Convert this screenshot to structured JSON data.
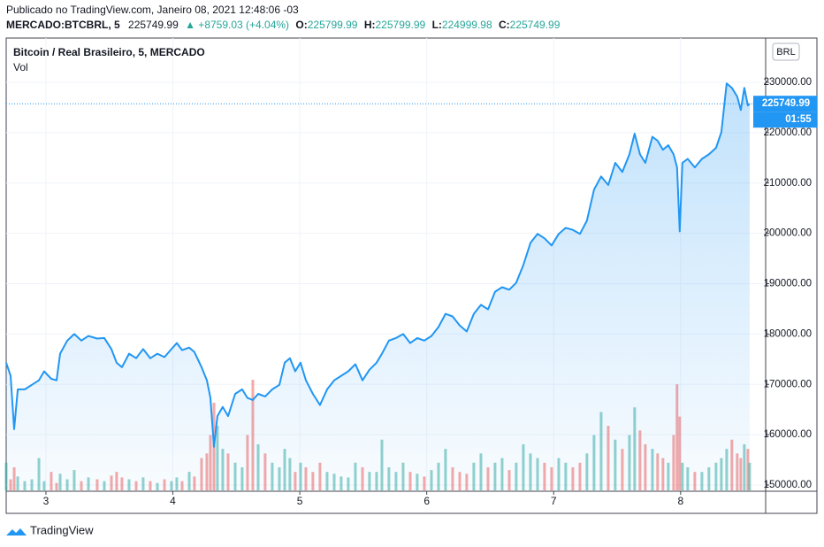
{
  "header": {
    "published": "Publicado no TradingView.com, Janeiro 08, 2021 12:48:06 -03",
    "symbol": "MERCADO:BTCBRL, 5",
    "last": "225749.99",
    "change": "▲ +8759.03 (+4.04%)",
    "ohlc": [
      {
        "label": "O:",
        "value": "225799.99"
      },
      {
        "label": "H:",
        "value": "225799.99"
      },
      {
        "label": "L:",
        "value": "224999.98"
      },
      {
        "label": "C:",
        "value": "225749.99"
      }
    ]
  },
  "footer": {
    "brand": "TradingView"
  },
  "chart_data": {
    "type": "line",
    "title": "Bitcoin / Real Brasileiro, 5, MERCADO",
    "volume_label": "Vol",
    "currency": "BRL",
    "countdown": "01:55",
    "color": "#2196f3",
    "volume_colors": {
      "up": "#26a69a",
      "down": "#ef5350"
    },
    "x": [
      2.687,
      2.722,
      2.75,
      2.778,
      2.833,
      2.889,
      2.945,
      2.986,
      3.042,
      3.084,
      3.112,
      3.168,
      3.223,
      3.279,
      3.335,
      3.404,
      3.46,
      3.516,
      3.557,
      3.599,
      3.655,
      3.711,
      3.766,
      3.822,
      3.878,
      3.934,
      3.989,
      4.031,
      4.073,
      4.129,
      4.17,
      4.226,
      4.268,
      4.296,
      4.324,
      4.351,
      4.393,
      4.435,
      4.491,
      4.546,
      4.588,
      4.63,
      4.672,
      4.727,
      4.783,
      4.839,
      4.881,
      4.922,
      4.964,
      5.006,
      5.048,
      5.103,
      5.159,
      5.215,
      5.271,
      5.326,
      5.382,
      5.438,
      5.494,
      5.549,
      5.605,
      5.647,
      5.702,
      5.758,
      5.814,
      5.87,
      5.925,
      5.981,
      6.037,
      6.093,
      6.148,
      6.204,
      6.26,
      6.315,
      6.371,
      6.427,
      6.483,
      6.538,
      6.594,
      6.65,
      6.705,
      6.761,
      6.817,
      6.873,
      6.928,
      6.984,
      7.04,
      7.095,
      7.151,
      7.207,
      7.262,
      7.318,
      7.374,
      7.43,
      7.485,
      7.541,
      7.597,
      7.638,
      7.68,
      7.722,
      7.778,
      7.819,
      7.861,
      7.903,
      7.945,
      7.972,
      7.993,
      8.014,
      8.056,
      8.112,
      8.168,
      8.223,
      8.279,
      8.321,
      8.363,
      8.404,
      8.446,
      8.474,
      8.502,
      8.53,
      8.544
    ],
    "values": [
      174300,
      171700,
      161100,
      169000,
      169000,
      169900,
      170800,
      172600,
      171100,
      170800,
      176100,
      178700,
      180000,
      178700,
      179600,
      179100,
      179200,
      177000,
      174300,
      173400,
      176100,
      175200,
      177000,
      175200,
      176100,
      175400,
      177000,
      178200,
      176800,
      177300,
      176400,
      173400,
      170800,
      167300,
      157600,
      163700,
      165500,
      163700,
      168100,
      169000,
      167300,
      166900,
      168100,
      167600,
      169000,
      169900,
      174300,
      175200,
      172600,
      174300,
      170800,
      168100,
      165900,
      169000,
      170800,
      171700,
      172600,
      174000,
      170800,
      172900,
      174300,
      176100,
      178700,
      179200,
      180000,
      178200,
      179200,
      178700,
      179600,
      181400,
      184000,
      183500,
      181700,
      180500,
      184000,
      185800,
      184900,
      188400,
      189300,
      188800,
      190200,
      193700,
      198100,
      199900,
      199000,
      197600,
      199900,
      201100,
      200700,
      199900,
      202500,
      208700,
      211300,
      209600,
      214000,
      212200,
      215700,
      219800,
      215700,
      214000,
      219200,
      218400,
      216600,
      217500,
      215700,
      213100,
      200400,
      214000,
      214800,
      213100,
      214800,
      215700,
      217000,
      220100,
      229800,
      228900,
      227200,
      224500,
      228900,
      225400,
      225749.99
    ],
    "volume": {
      "values": [
        30,
        12,
        25,
        15,
        10,
        12,
        35,
        10,
        20,
        8,
        18,
        12,
        22,
        10,
        14,
        12,
        10,
        16,
        20,
        14,
        12,
        10,
        14,
        10,
        8,
        12,
        10,
        14,
        10,
        20,
        15,
        35,
        40,
        60,
        95,
        70,
        45,
        40,
        30,
        25,
        60,
        120,
        50,
        40,
        30,
        25,
        45,
        35,
        20,
        30,
        25,
        20,
        30,
        20,
        18,
        15,
        14,
        30,
        25,
        20,
        20,
        55,
        25,
        20,
        30,
        20,
        18,
        15,
        22,
        30,
        45,
        25,
        20,
        18,
        30,
        40,
        25,
        30,
        35,
        22,
        30,
        50,
        40,
        35,
        30,
        25,
        35,
        30,
        25,
        30,
        40,
        60,
        85,
        70,
        55,
        45,
        60,
        90,
        65,
        50,
        45,
        40,
        35,
        30,
        60,
        115,
        80,
        30,
        25,
        20,
        20,
        25,
        30,
        35,
        45,
        55,
        40,
        35,
        50,
        45,
        30
      ]
    },
    "xlim": [
      2.687,
      8.67
    ],
    "xticks": [
      3,
      4,
      5,
      6,
      7,
      8
    ],
    "ylim": [
      148940,
      238800
    ],
    "yticks": [
      {
        "value": 150000,
        "label": "150000.00"
      },
      {
        "value": 160000,
        "label": "160000.00"
      },
      {
        "value": 170000,
        "label": "170000.00"
      },
      {
        "value": 180000,
        "label": "180000.00"
      },
      {
        "value": 190000,
        "label": "190000.00"
      },
      {
        "value": 200000,
        "label": "200000.00"
      },
      {
        "value": 210000,
        "label": "210000.00"
      },
      {
        "value": 220000,
        "label": "220000.00"
      },
      {
        "value": 230000,
        "label": "230000.00"
      }
    ],
    "grid": true
  }
}
